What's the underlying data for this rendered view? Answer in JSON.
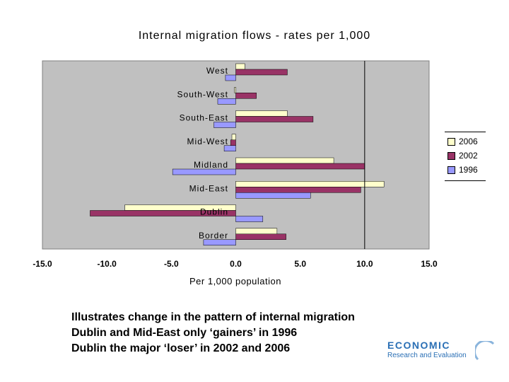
{
  "chart_data": {
    "type": "bar",
    "orientation": "horizontal",
    "title": "Internal migration flows - rates per 1,000",
    "xlabel": "Per 1,000 population",
    "ylabel": "",
    "xlim": [
      -15.0,
      15.0
    ],
    "x_ticks": [
      "-15.0",
      "-10.0",
      "-5.0",
      "0.0",
      "5.0",
      "10.0",
      "15.0"
    ],
    "categories": [
      "West",
      "South-West",
      "South-East",
      "Mid-West",
      "Midland",
      "Mid-East",
      "Dublin",
      "Border"
    ],
    "series": [
      {
        "name": "2006",
        "color": "#ffffcc",
        "values": [
          0.7,
          -0.1,
          4.0,
          -0.3,
          7.6,
          11.5,
          -8.6,
          3.2
        ]
      },
      {
        "name": "2002",
        "color": "#993366",
        "values": [
          4.0,
          1.6,
          6.0,
          -0.4,
          10.0,
          9.7,
          -11.3,
          3.9
        ]
      },
      {
        "name": "1996",
        "color": "#9999ff",
        "values": [
          -0.8,
          -1.4,
          -1.7,
          -0.9,
          -4.9,
          5.8,
          2.1,
          -2.5
        ]
      }
    ],
    "grid": false,
    "reference_line": 10.0,
    "legend_position": "right",
    "plot_background": "#c0c0c0"
  },
  "caption": {
    "line1": "Illustrates change in the pattern of internal migration",
    "line2": "Dublin and Mid-East only ‘gainers’ in 1996",
    "line3": "Dublin the major ‘loser’ in 2002 and 2006"
  },
  "logo": {
    "line1": "ECONOMIC",
    "line2": "Research and Evaluation"
  }
}
